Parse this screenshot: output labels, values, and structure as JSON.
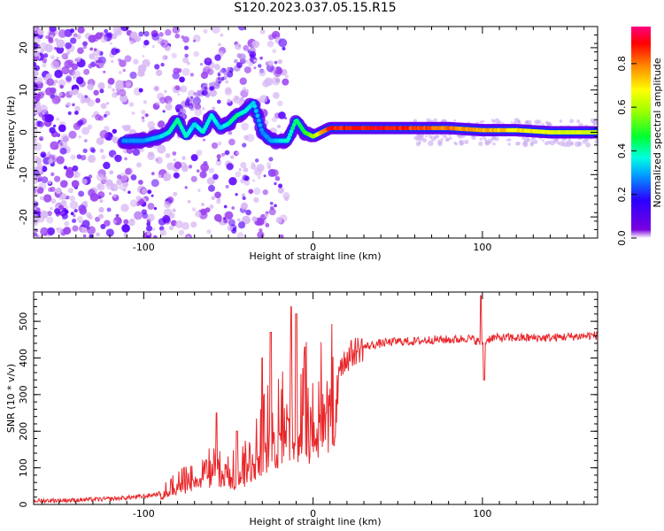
{
  "title": "S120.2023.037.05.15.R15",
  "colors": {
    "signal": "#e8262a",
    "axis": "#000000",
    "background": "#ffffff"
  },
  "chart_data": [
    {
      "type": "heatmap",
      "xlabel": "Height of straight line (km)",
      "ylabel": "Frequency (Hz)",
      "xlim": [
        -165,
        168
      ],
      "ylim": [
        -25,
        25
      ],
      "x_ticks": [
        -100,
        0,
        100
      ],
      "y_ticks": [
        -20,
        -10,
        0,
        10,
        20
      ],
      "grid": false,
      "colorbar": {
        "label": "Normalized spectral amplitude",
        "range": [
          0.0,
          0.97
        ],
        "ticks": [
          0.0,
          0.2,
          0.4,
          0.6,
          0.8
        ],
        "colormap": "rainbow (violet-blue-cyan-green-yellow-orange-red-magenta)"
      },
      "ridge": {
        "description": "main spectral line (frequency vs height)",
        "x": [
          -112,
          -100,
          -90,
          -85,
          -80,
          -75,
          -70,
          -65,
          -60,
          -55,
          -50,
          -45,
          -40,
          -35,
          -30,
          -25,
          -20,
          -15,
          -10,
          -5,
          0,
          5,
          10,
          20,
          40,
          60,
          80,
          100,
          120,
          140,
          168
        ],
        "y": [
          -2,
          -2,
          -1,
          0,
          3,
          -1,
          2,
          0,
          4,
          1,
          2,
          4,
          5,
          7,
          0,
          -2,
          -2,
          -2,
          3,
          0,
          -1,
          0,
          1,
          1,
          1,
          1,
          1,
          0.5,
          0.5,
          0,
          0
        ],
        "amplitude": [
          0.3,
          0.3,
          0.35,
          0.4,
          0.45,
          0.4,
          0.35,
          0.4,
          0.4,
          0.35,
          0.4,
          0.45,
          0.4,
          0.35,
          0.3,
          0.3,
          0.35,
          0.4,
          0.45,
          0.5,
          0.6,
          0.8,
          0.9,
          0.93,
          0.95,
          0.9,
          0.85,
          0.8,
          0.75,
          0.7,
          0.65
        ]
      }
    },
    {
      "type": "line",
      "xlabel": "Height of straight line (km)",
      "ylabel": "SNR (10 * v/v)",
      "xlim": [
        -165,
        168
      ],
      "ylim": [
        0,
        580
      ],
      "x_ticks": [
        -100,
        0,
        100
      ],
      "y_ticks": [
        0,
        100,
        200,
        300,
        400,
        500
      ],
      "grid": false,
      "series": [
        {
          "envelope_x": [
            -165,
            -140,
            -120,
            -100,
            -90,
            -85,
            -80,
            -75,
            -70,
            -65,
            -60,
            -55,
            -50,
            -45,
            -40,
            -35,
            -30,
            -25,
            -20,
            -15,
            -10,
            -5,
            0,
            5,
            10,
            15,
            20,
            25,
            30,
            40,
            50,
            60,
            70,
            80,
            85,
            90,
            95,
            100,
            105,
            110,
            120,
            130,
            140,
            150,
            160,
            168
          ],
          "envelope_y": [
            10,
            12,
            15,
            22,
            30,
            45,
            60,
            70,
            80,
            90,
            100,
            110,
            100,
            95,
            110,
            150,
            200,
            220,
            250,
            270,
            260,
            280,
            270,
            300,
            340,
            380,
            400,
            420,
            430,
            440,
            445,
            445,
            450,
            450,
            450,
            455,
            450,
            440,
            455,
            455,
            455,
            455,
            455,
            458,
            460,
            462
          ],
          "spikes": [
            {
              "x": -57,
              "y": 250
            },
            {
              "x": -45,
              "y": 200
            },
            {
              "x": -30,
              "y": 400
            },
            {
              "x": -25,
              "y": 470
            },
            {
              "x": -13,
              "y": 540
            },
            {
              "x": -10,
              "y": 520
            },
            {
              "x": -5,
              "y": 430
            },
            {
              "x": 99,
              "y": 570
            },
            {
              "x": 101,
              "y": 340
            }
          ]
        }
      ]
    }
  ]
}
